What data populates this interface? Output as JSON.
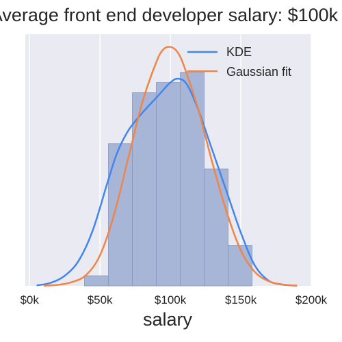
{
  "chart_data": {
    "type": "bar",
    "title": "Average front end developer salary: $100k",
    "xlabel": "salary",
    "ylabel": "",
    "xlim": [
      -3000,
      200000
    ],
    "x_ticks": [
      0,
      50000,
      100000,
      150000,
      200000
    ],
    "x_tick_labels": [
      "$0k",
      "$50k",
      "$100k",
      "$150k",
      "$200k"
    ],
    "grid": true,
    "legend": "top-right",
    "colors": {
      "plot_background": "#EAEAF2",
      "grid": "#FFFFFF",
      "histogram": "#A7B5D6",
      "histogram_edge": "#8796BE",
      "kde": "#4286EC",
      "gaussian": "#EF8546",
      "text": "#262626"
    },
    "histogram": {
      "bin_edges": [
        39000,
        56000,
        73000,
        90000,
        107000,
        124000,
        141000,
        158000
      ],
      "heights": [
        0.04,
        0.56,
        0.76,
        0.8,
        0.84,
        0.46,
        0.16
      ]
    },
    "series": [
      {
        "name": "KDE",
        "x": [
          5000,
          15000,
          25000,
          35000,
          45000,
          55000,
          62000,
          70000,
          80000,
          90000,
          100000,
          106000,
          112000,
          120000,
          130000,
          140000,
          150000,
          160000,
          170000,
          180000,
          190000
        ],
        "y": [
          0.002,
          0.012,
          0.04,
          0.1,
          0.22,
          0.4,
          0.52,
          0.61,
          0.68,
          0.74,
          0.8,
          0.815,
          0.79,
          0.69,
          0.53,
          0.37,
          0.21,
          0.08,
          0.02,
          0.005,
          0.001
        ]
      },
      {
        "name": "Gaussian fit",
        "x": [
          10000,
          20000,
          30000,
          40000,
          50000,
          60000,
          70000,
          80000,
          90000,
          95000,
          100000,
          105000,
          110000,
          120000,
          130000,
          140000,
          150000,
          160000,
          170000,
          180000,
          190000
        ],
        "y": [
          0.001,
          0.004,
          0.015,
          0.042,
          0.12,
          0.28,
          0.5,
          0.72,
          0.88,
          0.93,
          0.94,
          0.92,
          0.86,
          0.69,
          0.48,
          0.29,
          0.14,
          0.055,
          0.018,
          0.005,
          0.001
        ]
      }
    ]
  }
}
